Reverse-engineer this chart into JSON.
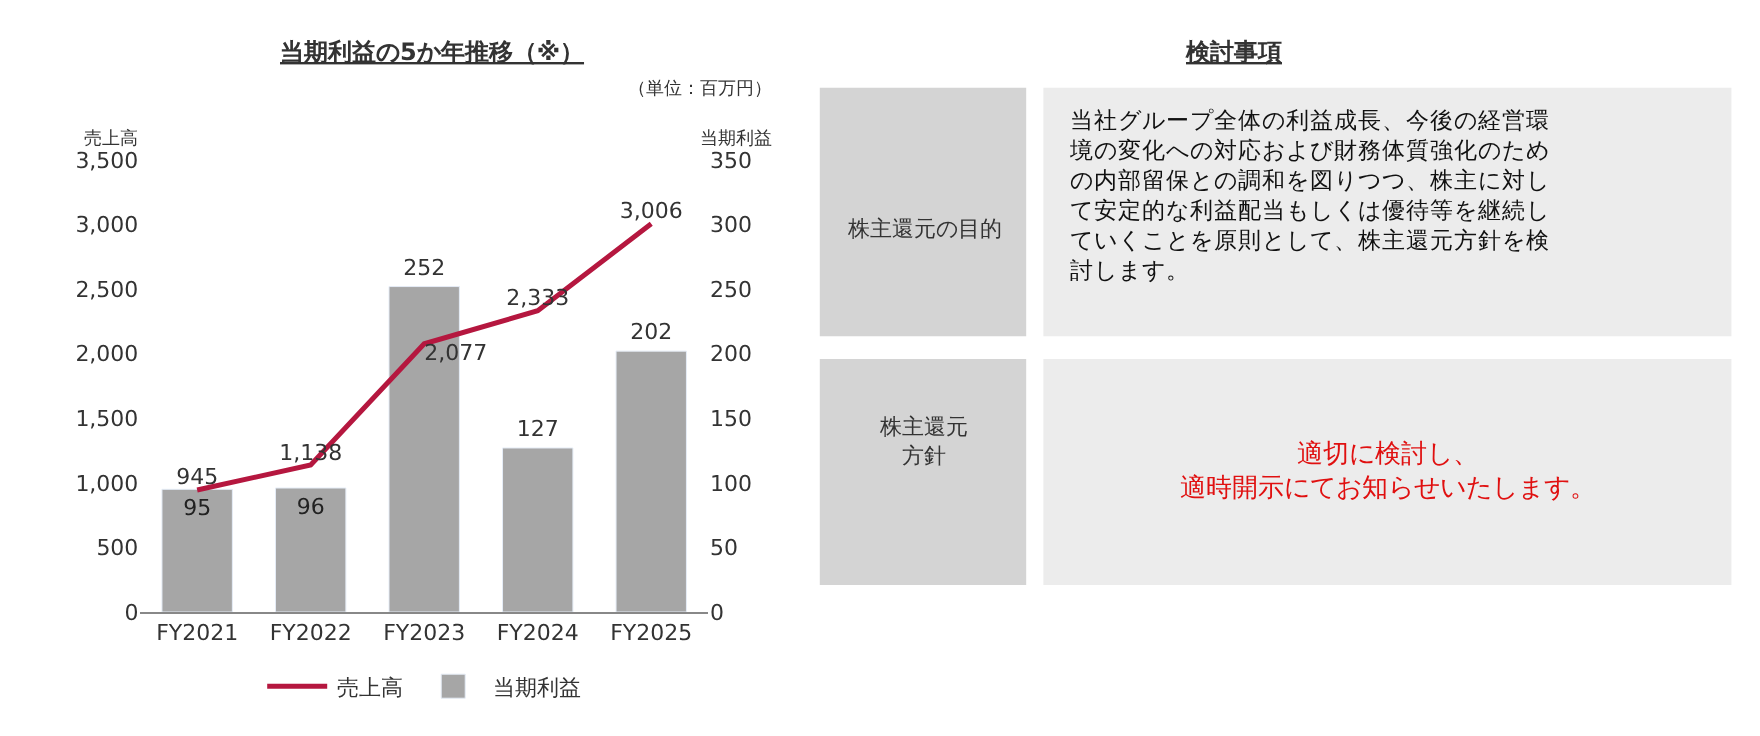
{
  "chart_data": [
    {
      "type": "bar",
      "title": "当期利益の5か年推移（※）",
      "subtitle": "（単位：百万円）",
      "ylabel": "売上高",
      "y2label": "当期利益",
      "categories": [
        "FY2021",
        "FY2022",
        "FY2023",
        "FY2024",
        "FY2025"
      ],
      "series": [
        {
          "name": "売上高",
          "type": "line",
          "color": "#b5173f",
          "values": [
            945,
            1138,
            2077,
            2333,
            3006
          ],
          "value_labels": [
            "945",
            "1,138",
            "2,077",
            "2,333",
            "3,006"
          ]
        },
        {
          "name": "当期利益",
          "type": "bar",
          "axis": "y2",
          "color": "#a6a6a6",
          "values": [
            95,
            96,
            252,
            127,
            202
          ],
          "value_labels": [
            "95",
            "96",
            "252",
            "127",
            "202"
          ]
        }
      ],
      "ylim": [
        0,
        3500
      ],
      "yticks": [
        0,
        {
          "value": 500,
          "label": "500"
        },
        {
          "value": 1000,
          "label": "1,000"
        },
        {
          "value": 1500,
          "label": "1,500"
        },
        {
          "value": 2000,
          "label": "2,000"
        },
        {
          "value": 2500,
          "label": "2,500"
        },
        {
          "value": 3000,
          "label": "3,000"
        },
        {
          "value": 3500,
          "label": "3,500"
        }
      ],
      "y2lim": [
        0,
        350
      ],
      "y2ticks": [
        0,
        50,
        100,
        150,
        200,
        250,
        300,
        350
      ],
      "legend": "bottom",
      "marker": "none",
      "line_style": "solid"
    },
    {
      "type": "other",
      "title": "検討事項",
      "annotations": [
        "株主還元の目的",
        "当社グループ全体の利益成長、今後の経営環境の変化への対応および財務体質強化のための内部留保との調和を図りつつ、株主に対して安定的な利益配当もしくは優待等を継続していくことを原則として、株主還元方針を検討します。",
        "株主還元方針",
        "適切に検討し、適時開示にてお知らせいたします。"
      ]
    }
  ]
}
